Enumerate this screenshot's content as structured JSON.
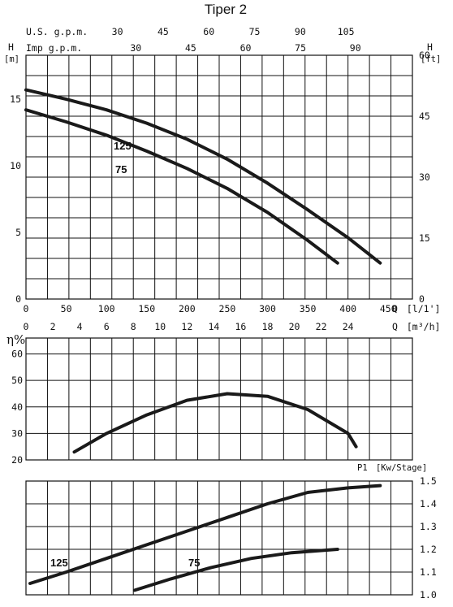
{
  "title": "Tiper 2",
  "chart_data": [
    {
      "type": "line",
      "panel": "head",
      "ylabel": "H",
      "ylabel_unit": "[m]",
      "ylabel_right": "H",
      "ylabel_right_unit": "[ft]",
      "xlabel": "Q",
      "xlabel_unit": "[l/1']",
      "xlabel_secondary": "Q",
      "xlabel_secondary_unit": "[m³/h]",
      "top_scale_1_label": "U.S. g.p.m.",
      "top_scale_1_ticks": [
        "30",
        "45",
        "60",
        "75",
        "90",
        "105"
      ],
      "top_scale_2_label": "Imp g.p.m.",
      "top_scale_2_ticks": [
        "30",
        "45",
        "60",
        "75",
        "90"
      ],
      "x_ticks": [
        "0",
        "50",
        "100",
        "150",
        "200",
        "250",
        "300",
        "350",
        "400",
        "450"
      ],
      "x_ticks_secondary": [
        "0",
        "2",
        "4",
        "6",
        "8",
        "10",
        "12",
        "14",
        "16",
        "18",
        "20",
        "22",
        "24"
      ],
      "y_ticks": [
        "0",
        "5",
        "10",
        "15"
      ],
      "y_ticks_right": [
        "0",
        "15",
        "30",
        "45",
        "60"
      ],
      "xlim": [
        0,
        480
      ],
      "ylim": [
        0,
        18.3
      ],
      "grid": true,
      "series": [
        {
          "name": "125",
          "x": [
            0,
            50,
            100,
            150,
            200,
            250,
            300,
            350,
            400,
            440
          ],
          "y": [
            15.7,
            15.0,
            14.2,
            13.2,
            12.0,
            10.5,
            8.7,
            6.7,
            4.6,
            2.7
          ]
        },
        {
          "name": "75",
          "x": [
            0,
            50,
            100,
            150,
            200,
            250,
            300,
            350,
            387
          ],
          "y": [
            14.2,
            13.3,
            12.3,
            11.1,
            9.8,
            8.3,
            6.5,
            4.4,
            2.7
          ]
        }
      ]
    },
    {
      "type": "line",
      "panel": "efficiency",
      "ylabel": "η%",
      "y_ticks": [
        "20",
        "30",
        "40",
        "50",
        "60"
      ],
      "xlim": [
        0,
        480
      ],
      "ylim": [
        20,
        66
      ],
      "grid": true,
      "series": [
        {
          "x": [
            60,
            100,
            150,
            200,
            250,
            300,
            350,
            400,
            410
          ],
          "y": [
            23,
            30,
            37,
            42.5,
            45,
            44,
            39,
            30,
            25
          ]
        }
      ]
    },
    {
      "type": "line",
      "panel": "power",
      "ylabel_right": "P1",
      "ylabel_right_unit": "[Kw/Stage]",
      "y_ticks_right": [
        "1.0",
        "1.1",
        "1.2",
        "1.3",
        "1.4",
        "1.5"
      ],
      "xlim": [
        0,
        480
      ],
      "ylim": [
        1.0,
        1.5
      ],
      "grid": true,
      "series": [
        {
          "name": "125",
          "x": [
            5,
            50,
            100,
            150,
            200,
            250,
            300,
            350,
            400,
            440
          ],
          "y": [
            1.05,
            1.1,
            1.16,
            1.22,
            1.28,
            1.34,
            1.4,
            1.45,
            1.47,
            1.48
          ]
        },
        {
          "name": "75",
          "x": [
            135,
            180,
            230,
            280,
            330,
            387
          ],
          "y": [
            1.02,
            1.07,
            1.12,
            1.16,
            1.185,
            1.2
          ]
        }
      ]
    }
  ]
}
